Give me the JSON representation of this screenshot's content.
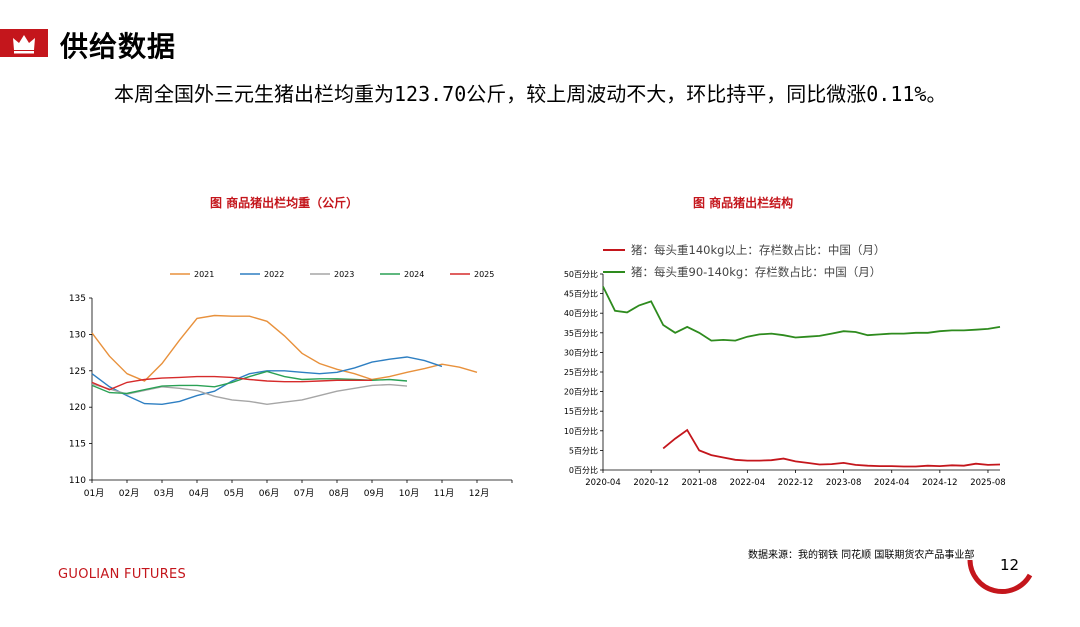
{
  "slide": {
    "title": "供给数据",
    "body": "本周全国外三元生猪出栏均重为123.70公斤，较上周波动不大，环比持平，同比微涨0.11%。",
    "source": "数据来源：我的钢铁  同花顺  国联期货农产品事业部",
    "brand": "GUOLIAN FUTURES",
    "page_number": "12",
    "colors": {
      "brand_red": "#c4161c"
    }
  },
  "chart_data": [
    {
      "type": "line",
      "title": "图   商品猪出栏均重（公斤）",
      "xlabel": "",
      "ylabel": "",
      "ylim": [
        110,
        135
      ],
      "yticks": [
        "110",
        "115",
        "120",
        "125",
        "130",
        "135"
      ],
      "x": [
        1,
        1.5,
        2,
        2.5,
        3,
        3.5,
        4,
        4.5,
        5,
        5.5,
        6,
        6.5,
        7,
        7.5,
        8,
        8.5,
        9,
        9.5,
        10,
        10.5,
        11,
        11.5,
        12,
        12.5,
        13
      ],
      "xtick_labels": [
        "01月",
        "02月",
        "03月",
        "04月",
        "05月",
        "06月",
        "07月",
        "08月",
        "09月",
        "10月",
        "11月",
        "12月"
      ],
      "legend_position": "top",
      "series": [
        {
          "name": "2021",
          "color": "#e8913c",
          "values": [
            130.2,
            127.0,
            124.6,
            123.6,
            126.0,
            129.2,
            132.2,
            132.6,
            132.5,
            132.5,
            131.8,
            129.8,
            127.4,
            126.0,
            125.2,
            124.6,
            123.8,
            124.2,
            124.8,
            125.3,
            125.9,
            125.5,
            124.8,
            null,
            null
          ]
        },
        {
          "name": "2022",
          "color": "#2e7fc2",
          "values": [
            124.6,
            122.8,
            121.6,
            120.5,
            120.4,
            120.8,
            121.6,
            122.2,
            123.6,
            124.6,
            125.0,
            125.0,
            124.8,
            124.6,
            124.8,
            125.4,
            126.2,
            126.6,
            126.9,
            126.4,
            125.6,
            null,
            null,
            null,
            null
          ]
        },
        {
          "name": "2023",
          "color": "#a6a6a6",
          "values": [
            123.2,
            122.5,
            121.8,
            122.3,
            122.8,
            122.6,
            122.3,
            121.5,
            121.0,
            120.8,
            120.4,
            120.7,
            121.0,
            121.6,
            122.2,
            122.6,
            123.0,
            123.1,
            122.9,
            null,
            null,
            null,
            null,
            null,
            null
          ]
        },
        {
          "name": "2024",
          "color": "#2aa155",
          "values": [
            123.0,
            122.0,
            121.9,
            122.4,
            122.9,
            123.0,
            123.0,
            122.8,
            123.4,
            124.2,
            124.9,
            124.2,
            123.8,
            123.9,
            123.9,
            123.8,
            123.7,
            123.8,
            123.6,
            null,
            null,
            null,
            null,
            null,
            null
          ]
        },
        {
          "name": "2025",
          "color": "#d62b2b",
          "values": [
            123.4,
            122.4,
            123.4,
            123.8,
            124.0,
            124.1,
            124.2,
            124.2,
            124.1,
            123.8,
            123.6,
            123.5,
            123.5,
            123.6,
            123.7,
            123.7,
            123.7,
            null,
            null,
            null,
            null,
            null,
            null,
            null,
            null
          ]
        }
      ]
    },
    {
      "type": "line",
      "title": "图   商品猪出栏结构",
      "xlabel": "",
      "ylabel": "",
      "ylim": [
        0,
        50
      ],
      "yticks": [
        "0百分比",
        "5百分比",
        "10百分比",
        "15百分比",
        "20百分比",
        "25百分比",
        "30百分比",
        "35百分比",
        "40百分比",
        "45百分比",
        "50百分比"
      ],
      "x": [
        "2020-04",
        "2020-06",
        "2020-08",
        "2020-10",
        "2020-12",
        "2021-02",
        "2021-04",
        "2021-06",
        "2021-08",
        "2021-10",
        "2021-12",
        "2022-02",
        "2022-04",
        "2022-06",
        "2022-08",
        "2022-10",
        "2022-12",
        "2023-02",
        "2023-04",
        "2023-06",
        "2023-08",
        "2023-10",
        "2023-12",
        "2024-02",
        "2024-04",
        "2024-06",
        "2024-08",
        "2024-10",
        "2024-12",
        "2025-02",
        "2025-04",
        "2025-06",
        "2025-08",
        "2025-10"
      ],
      "xtick_labels": [
        "2020-04",
        "2020-12",
        "2021-08",
        "2022-04",
        "2022-12",
        "2023-08",
        "2024-04",
        "2024-12",
        "2025-08"
      ],
      "legend_position": "top-left",
      "series": [
        {
          "name": "猪：每头重140kg以上：存栏数占比：中国（月）",
          "color": "#c4161c",
          "values": [
            null,
            null,
            null,
            null,
            null,
            5.5,
            8.0,
            10.2,
            5.0,
            3.8,
            3.2,
            2.6,
            2.4,
            2.4,
            2.5,
            2.9,
            2.2,
            1.8,
            1.4,
            1.5,
            1.8,
            1.3,
            1.1,
            1.0,
            1.0,
            0.9,
            0.9,
            1.1,
            1.0,
            1.2,
            1.1,
            1.6,
            1.3,
            1.4
          ]
        },
        {
          "name": "猪：每头重90-140kg：存栏数占比：中国（月）",
          "color": "#2e8b1e",
          "values": [
            46.8,
            40.6,
            40.2,
            42.0,
            43.0,
            37.0,
            35.0,
            36.5,
            35.0,
            33.0,
            33.2,
            33.0,
            34.0,
            34.6,
            34.8,
            34.4,
            33.8,
            34.0,
            34.2,
            34.8,
            35.4,
            35.2,
            34.4,
            34.6,
            34.8,
            34.8,
            35.0,
            35.0,
            35.4,
            35.6,
            35.6,
            35.8,
            36.0,
            36.5
          ]
        }
      ]
    }
  ]
}
